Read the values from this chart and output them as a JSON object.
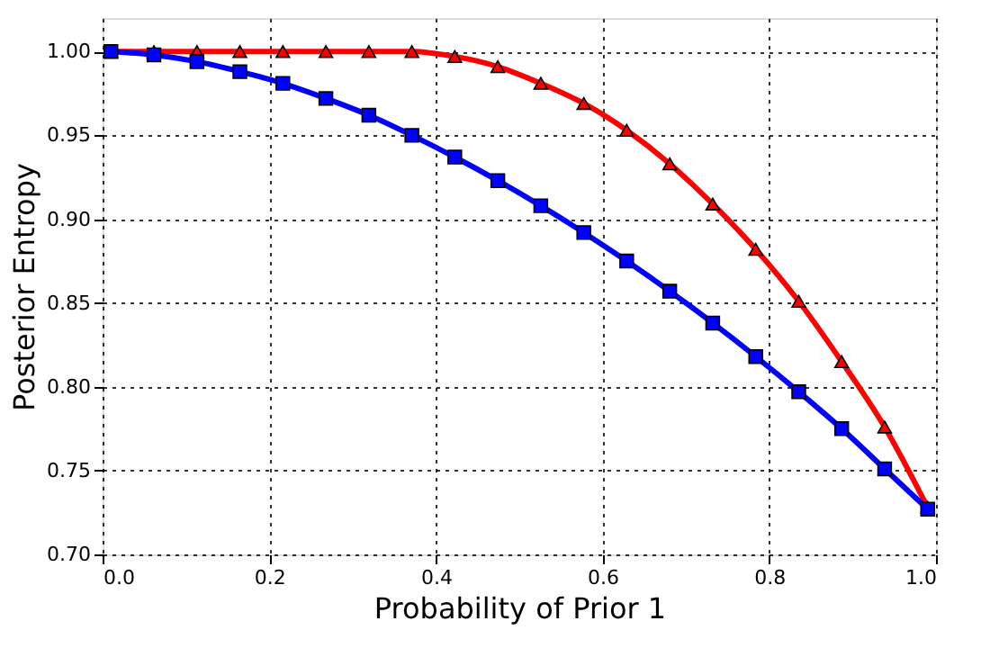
{
  "chart_data": {
    "type": "line",
    "xlabel": "Probability of Prior 1",
    "ylabel": "Posterior Entropy",
    "x": [
      0.01,
      0.0616,
      0.1132,
      0.1647,
      0.2163,
      0.2679,
      0.3195,
      0.3711,
      0.4226,
      0.4742,
      0.5258,
      0.5774,
      0.6289,
      0.6805,
      0.7321,
      0.7837,
      0.8353,
      0.8868,
      0.9384,
      0.99
    ],
    "series": [
      {
        "color": "#ff0000",
        "marker": "triangle",
        "values": [
          1.0,
          1.0,
          1.0,
          1.0,
          1.0,
          1.0,
          1.0,
          1.0,
          0.997,
          0.991,
          0.981,
          0.969,
          0.953,
          0.933,
          0.909,
          0.882,
          0.851,
          0.815,
          0.776,
          0.728
        ]
      },
      {
        "color": "#0000ff",
        "marker": "square",
        "values": [
          1.0,
          0.998,
          0.994,
          0.988,
          0.981,
          0.972,
          0.962,
          0.95,
          0.937,
          0.923,
          0.908,
          0.892,
          0.875,
          0.857,
          0.838,
          0.818,
          0.797,
          0.775,
          0.751,
          0.727
        ]
      }
    ],
    "xlim": [
      0.0,
      1.0
    ],
    "xticks": [
      {
        "value": 0,
        "label": "0.0"
      },
      0.2,
      0.4,
      0.6,
      0.8,
      {
        "value": 1,
        "label": "1.0"
      }
    ],
    "ylim": [
      0.7,
      1.02
    ],
    "yticks": [
      {
        "value": 0.7,
        "label": "0.70"
      },
      0.75,
      {
        "value": 0.8,
        "label": "0.80"
      },
      0.85,
      {
        "value": 0.9,
        "label": "0.90"
      },
      0.95,
      {
        "value": 1,
        "label": "1.00"
      }
    ],
    "grid": true,
    "line_style": "solid"
  }
}
